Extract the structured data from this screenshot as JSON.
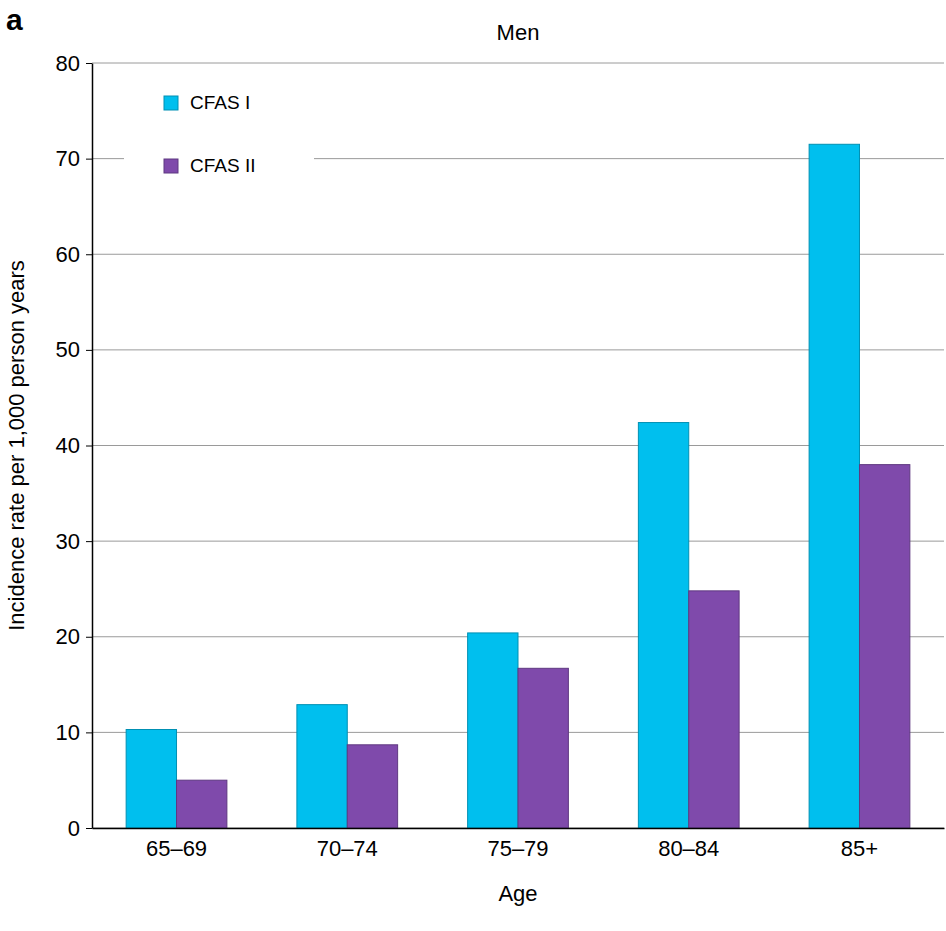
{
  "chart_data": {
    "type": "bar",
    "title": "Men",
    "annotations": [
      "a"
    ],
    "x_label": "Age",
    "y_label": "Incidence rate per 1,000 person years",
    "categories": [
      "65–69",
      "70–74",
      "75–79",
      "80–84",
      "85+"
    ],
    "series": [
      {
        "name": "CFAS I",
        "color": "#00bfee",
        "values": [
          10.3,
          12.9,
          20.4,
          42.4,
          71.5
        ]
      },
      {
        "name": "CFAS II",
        "color": "#7f4aab",
        "values": [
          5.0,
          8.7,
          16.7,
          24.8,
          38.0
        ]
      }
    ],
    "ylim": [
      0,
      80
    ],
    "yticks": [
      0,
      10,
      20,
      30,
      40,
      50,
      60,
      70,
      80
    ],
    "grid": true,
    "legend": "top-left"
  }
}
